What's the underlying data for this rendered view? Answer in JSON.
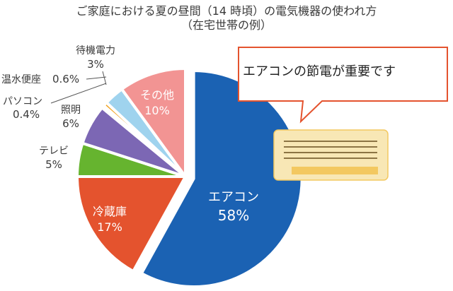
{
  "title": {
    "line1": "ご家庭における夏の昼間（14 時頃）の電気機器の使われ方",
    "line2": "（在宅世帯の例）"
  },
  "callout": {
    "text": "エアコンの節電が重要です"
  },
  "chart_data": {
    "type": "pie",
    "title": "ご家庭における夏の昼間（14 時頃）の電気機器の使われ方（在宅世帯の例）",
    "slices": [
      {
        "label": "エアコン",
        "value": 58,
        "value_text": "58%",
        "color": "#1b62b3"
      },
      {
        "label": "冷蔵庫",
        "value": 17,
        "value_text": "17%",
        "color": "#e4532e"
      },
      {
        "label": "テレビ",
        "value": 5,
        "value_text": "5%",
        "color": "#66b42f"
      },
      {
        "label": "照明",
        "value": 6,
        "value_text": "6%",
        "color": "#7c67b4"
      },
      {
        "label": "パソコン",
        "value": 0.4,
        "value_text": "0.4%",
        "color": "#1c4f8f"
      },
      {
        "label": "温水便座",
        "value": 0.6,
        "value_text": "0.6%",
        "color": "#f0a21f"
      },
      {
        "label": "待機電力",
        "value": 3,
        "value_text": "3%",
        "color": "#9fd3ee"
      },
      {
        "label": "その他",
        "value": 10,
        "value_text": "10%",
        "color": "#f29493"
      }
    ],
    "exploded": "エアコン",
    "colors": {
      "ac_box": "#f8e7b5",
      "ac_vent": "#f3c860",
      "ac_lines": "#8c7444",
      "callout_border": "#e4532e"
    }
  }
}
